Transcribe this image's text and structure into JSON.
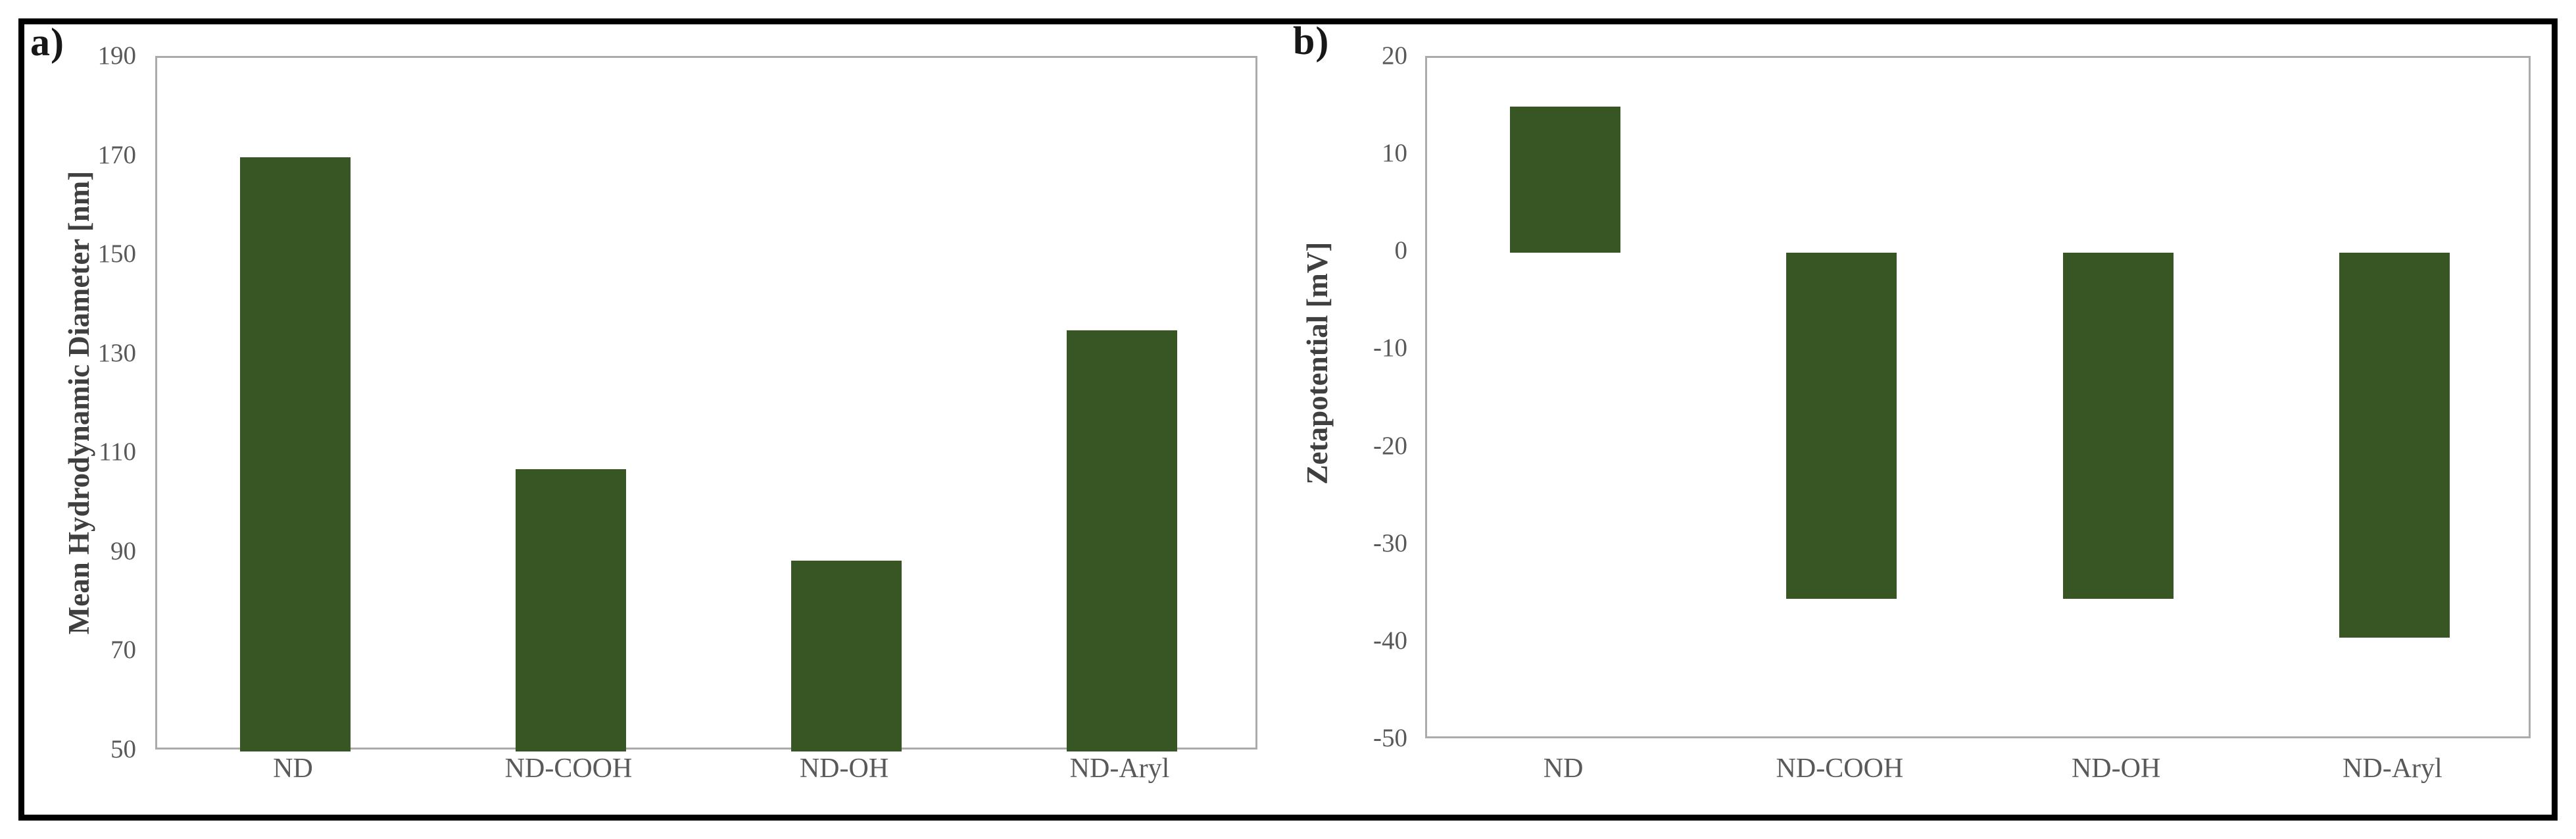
{
  "figure": {
    "description": "Two-panel bar figure comparing surface-functionalized nanodiamond samples",
    "background_color": "#ffffff",
    "border_color": "#000000"
  },
  "chart_data": [
    {
      "type": "bar",
      "panel_label": "a)",
      "title": "",
      "xlabel": "",
      "ylabel": "Mean Hydrodynamic Diameter [nm]",
      "categories": [
        "ND",
        "ND-COOH",
        "ND-OH",
        "ND-Aryl"
      ],
      "values": [
        170,
        107,
        88.5,
        135
      ],
      "ylim": [
        50,
        190
      ],
      "ytick_step": 20,
      "ytick_labels": [
        "190",
        "170",
        "150",
        "130",
        "110",
        "90",
        "70",
        "50"
      ],
      "bar_baseline": 50,
      "grid": false,
      "legend": "none",
      "bar_color": "#375623",
      "axis_frame_color": "#ababab",
      "tick_text_color": "#595959"
    },
    {
      "type": "bar",
      "panel_label": "b)",
      "title": "",
      "xlabel": "",
      "ylabel": "Zetapotential [mV]",
      "categories": [
        "ND",
        "ND-COOH",
        "ND-OH",
        "ND-Aryl"
      ],
      "values": [
        15,
        -35.5,
        -35.5,
        -39.5
      ],
      "ylim": [
        -50,
        20
      ],
      "ytick_step": 10,
      "ytick_labels": [
        "20",
        "10",
        "0",
        "-10",
        "-20",
        "-30",
        "-40",
        "-50"
      ],
      "bar_baseline": 0,
      "grid": false,
      "legend": "none",
      "bar_color": "#375623",
      "axis_frame_color": "#ababab",
      "tick_text_color": "#595959"
    }
  ]
}
